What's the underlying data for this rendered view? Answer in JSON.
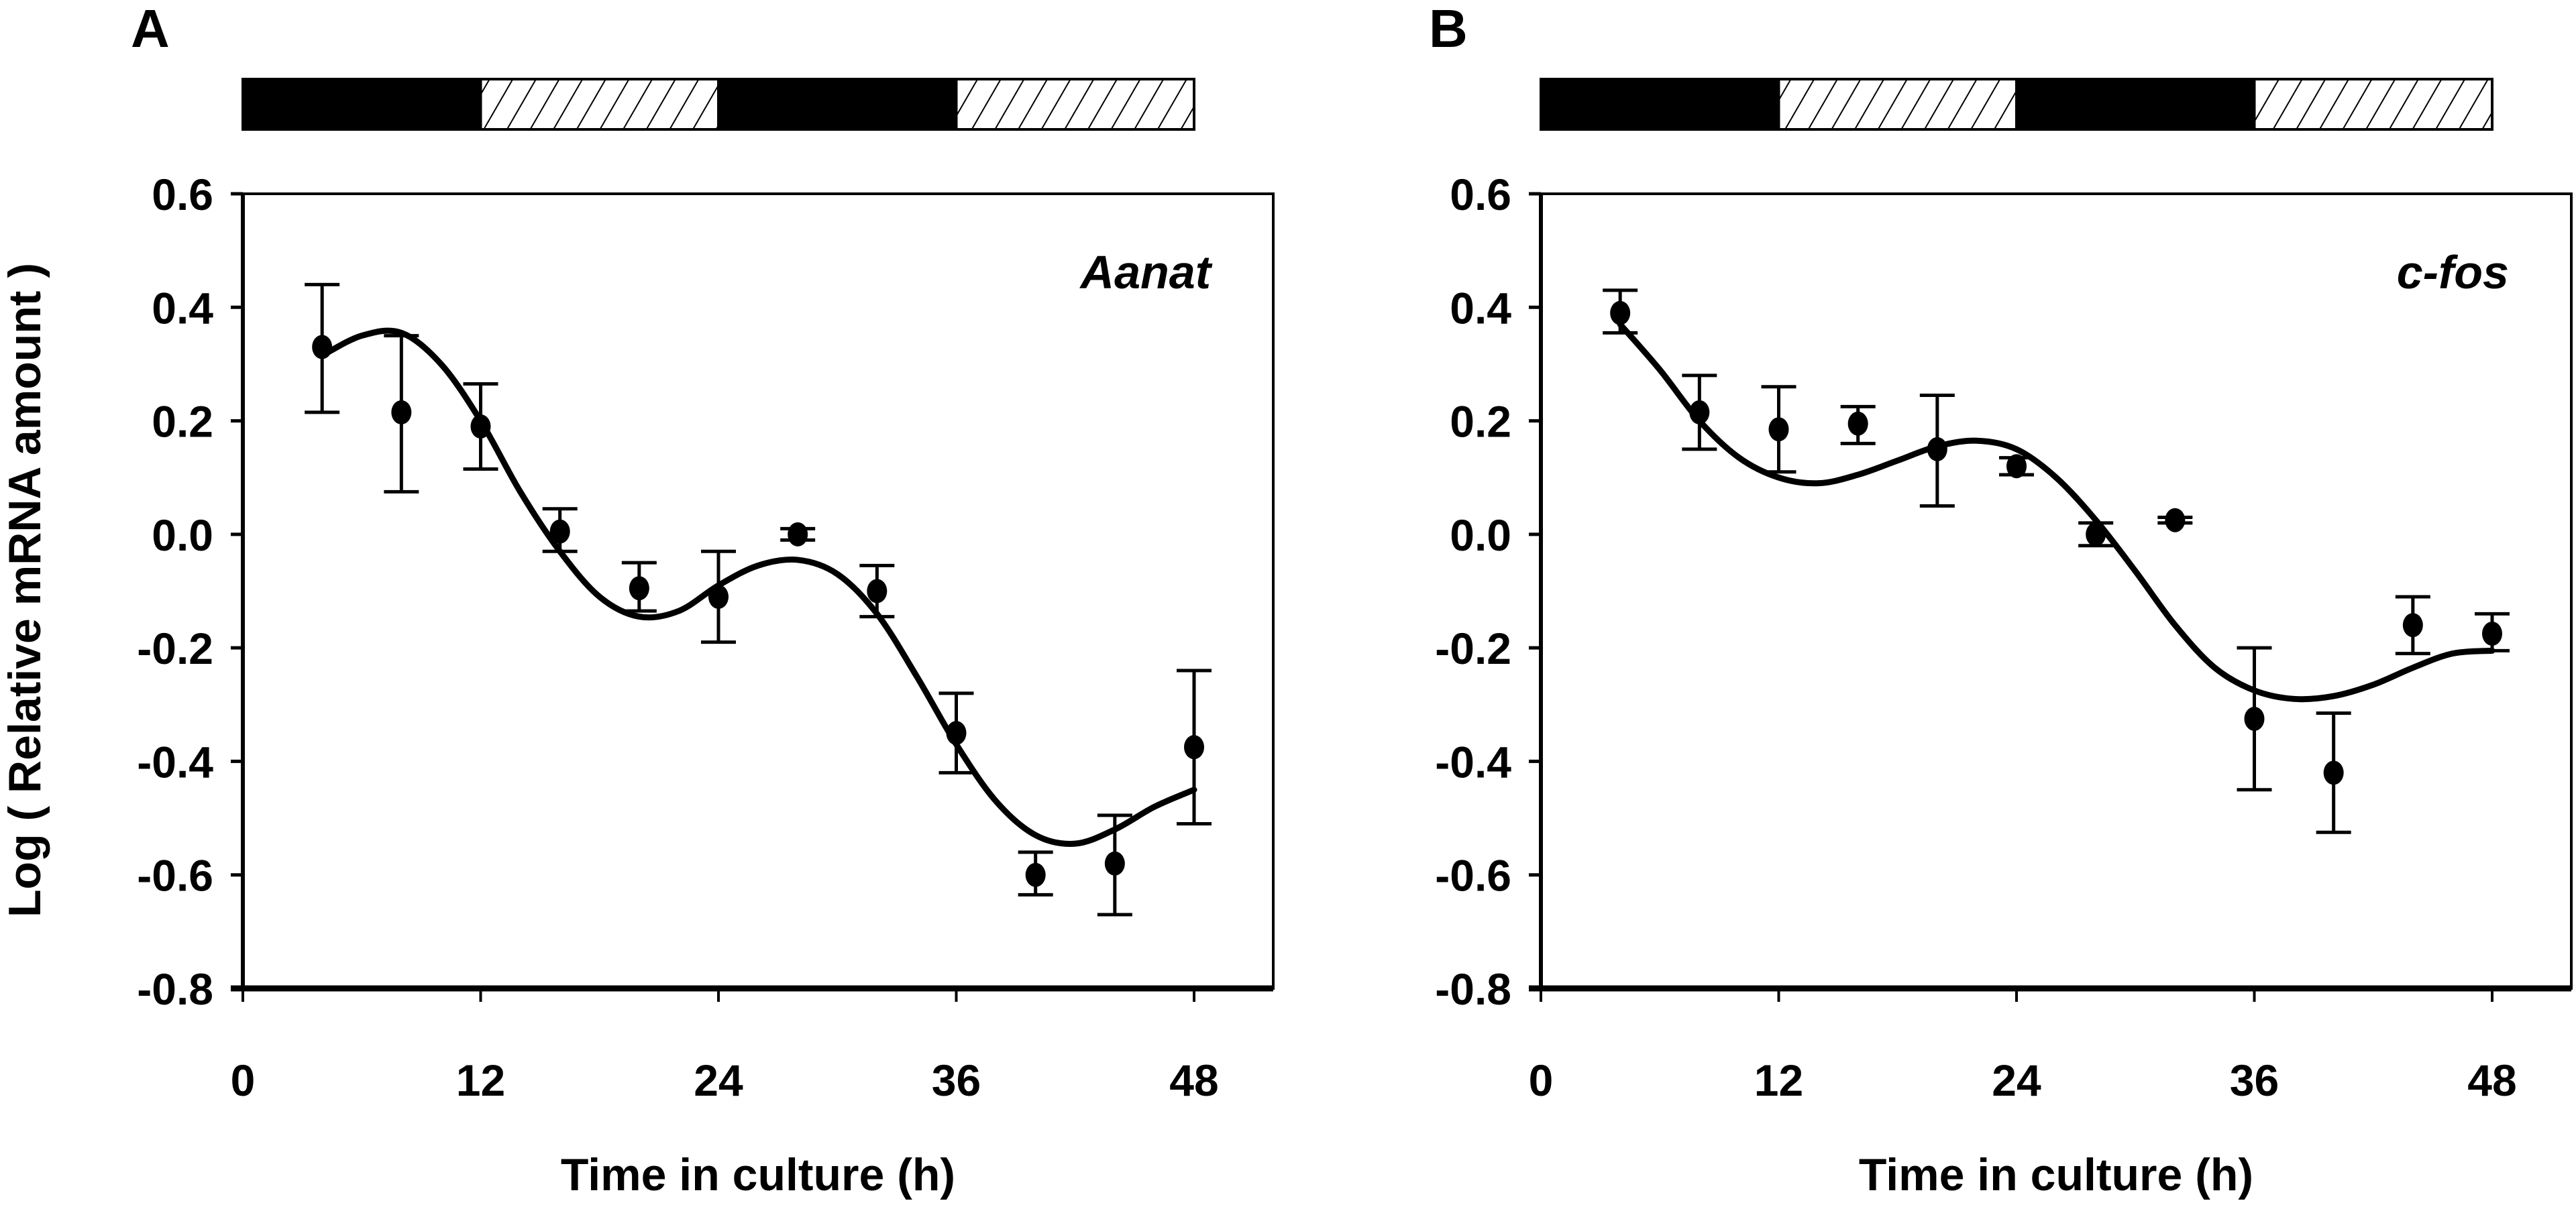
{
  "chart_data": [
    {
      "type": "scatter",
      "panel_label": "A",
      "gene": "Aanat",
      "title": "",
      "xlabel": "Time in culture (h)",
      "ylabel": "Log ( Relative mRNA amount )",
      "xlim": [
        0,
        52
      ],
      "ylim": [
        -0.8,
        0.6
      ],
      "xticks": [
        0,
        12,
        24,
        36,
        48
      ],
      "xtick_labels": [
        "0",
        "12",
        "24",
        "36",
        "48"
      ],
      "yticks": [
        0.6,
        0.4,
        0.2,
        0.0,
        -0.2,
        -0.4,
        -0.6,
        -0.8
      ],
      "ytick_labels": [
        "0.6",
        "0.4",
        "0.2",
        "0.0",
        "-0.2",
        "-0.4",
        "-0.6",
        "-0.8"
      ],
      "grid": false,
      "light_dark_bar": [
        {
          "start": 0,
          "end": 12,
          "phase": "dark"
        },
        {
          "start": 12,
          "end": 24,
          "phase": "light"
        },
        {
          "start": 24,
          "end": 36,
          "phase": "dark"
        },
        {
          "start": 36,
          "end": 48,
          "phase": "light"
        }
      ],
      "series": [
        {
          "name": "Aanat data",
          "x": [
            4,
            8,
            12,
            16,
            20,
            24,
            28,
            32,
            36,
            40,
            44,
            48
          ],
          "y": [
            0.33,
            0.215,
            0.19,
            0.005,
            -0.095,
            -0.11,
            0.0,
            -0.1,
            -0.35,
            -0.6,
            -0.58,
            -0.375
          ],
          "err_upper": [
            0.44,
            0.35,
            0.265,
            0.045,
            -0.05,
            -0.03,
            0.01,
            -0.055,
            -0.28,
            -0.56,
            -0.495,
            -0.24
          ],
          "err_lower": [
            0.215,
            0.075,
            0.115,
            -0.03,
            -0.135,
            -0.19,
            -0.01,
            -0.145,
            -0.42,
            -0.635,
            -0.67,
            -0.51
          ]
        },
        {
          "name": "Aanat fit",
          "x": [
            4,
            6,
            8,
            10,
            12,
            14,
            16,
            18,
            20,
            22,
            24,
            26,
            28,
            30,
            32,
            34,
            36,
            38,
            40,
            42,
            44,
            46,
            48
          ],
          "y": [
            0.315,
            0.35,
            0.355,
            0.3,
            0.2,
            0.075,
            -0.03,
            -0.11,
            -0.145,
            -0.135,
            -0.09,
            -0.055,
            -0.045,
            -0.07,
            -0.14,
            -0.25,
            -0.37,
            -0.47,
            -0.53,
            -0.545,
            -0.52,
            -0.48,
            -0.45
          ]
        }
      ]
    },
    {
      "type": "scatter",
      "panel_label": "B",
      "gene": "c-fos",
      "title": "",
      "xlabel": "Time in culture (h)",
      "ylabel": "",
      "xlim": [
        0,
        52
      ],
      "ylim": [
        -0.8,
        0.6
      ],
      "xticks": [
        0,
        12,
        24,
        36,
        48
      ],
      "xtick_labels": [
        "0",
        "12",
        "24",
        "36",
        "48"
      ],
      "yticks": [
        0.6,
        0.4,
        0.2,
        0.0,
        -0.2,
        -0.4,
        -0.6,
        -0.8
      ],
      "ytick_labels": [
        "0.6",
        "0.4",
        "0.2",
        "0.0",
        "-0.2",
        "-0.4",
        "-0.6",
        "-0.8"
      ],
      "grid": false,
      "light_dark_bar": [
        {
          "start": 0,
          "end": 12,
          "phase": "dark"
        },
        {
          "start": 12,
          "end": 24,
          "phase": "light"
        },
        {
          "start": 24,
          "end": 36,
          "phase": "dark"
        },
        {
          "start": 36,
          "end": 48,
          "phase": "light"
        }
      ],
      "series": [
        {
          "name": "c-fos data",
          "x": [
            4,
            8,
            12,
            16,
            20,
            24,
            28,
            32,
            36,
            40,
            44,
            48
          ],
          "y": [
            0.39,
            0.215,
            0.185,
            0.195,
            0.15,
            0.12,
            0.0,
            0.025,
            -0.325,
            -0.42,
            -0.16,
            -0.175
          ],
          "err_upper": [
            0.43,
            0.28,
            0.26,
            0.225,
            0.245,
            0.135,
            0.02,
            0.03,
            -0.2,
            -0.315,
            -0.11,
            -0.14
          ],
          "err_lower": [
            0.355,
            0.15,
            0.11,
            0.16,
            0.05,
            0.105,
            -0.02,
            0.02,
            -0.45,
            -0.525,
            -0.21,
            -0.205
          ]
        },
        {
          "name": "c-fos fit",
          "x": [
            4,
            6,
            8,
            10,
            12,
            14,
            16,
            18,
            20,
            22,
            24,
            26,
            28,
            30,
            32,
            34,
            36,
            38,
            40,
            42,
            44,
            46,
            48
          ],
          "y": [
            0.37,
            0.29,
            0.2,
            0.135,
            0.1,
            0.09,
            0.105,
            0.13,
            0.155,
            0.165,
            0.15,
            0.1,
            0.025,
            -0.065,
            -0.16,
            -0.235,
            -0.275,
            -0.29,
            -0.285,
            -0.265,
            -0.235,
            -0.21,
            -0.205
          ]
        }
      ]
    }
  ]
}
